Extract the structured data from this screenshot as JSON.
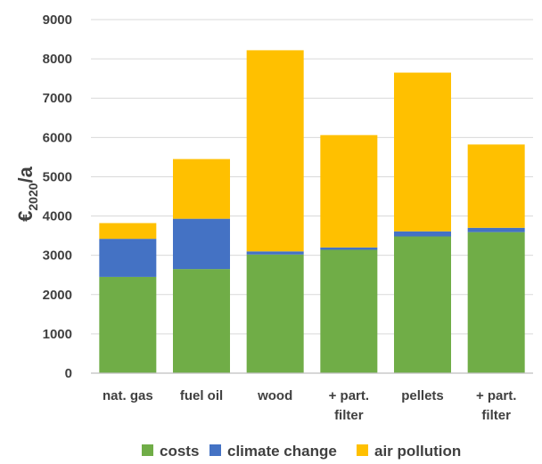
{
  "chart_data": {
    "type": "bar",
    "stacked": true,
    "categories": [
      [
        "nat. gas"
      ],
      [
        "fuel oil"
      ],
      [
        "wood"
      ],
      [
        "+ part.",
        "filter"
      ],
      [
        "pellets"
      ],
      [
        "+ part.",
        "filter"
      ]
    ],
    "series": [
      {
        "name": "costs",
        "color": "#70ad47",
        "values": [
          2450,
          2650,
          3020,
          3140,
          3480,
          3590
        ]
      },
      {
        "name": "climate change",
        "color": "#4472c4",
        "values": [
          970,
          1280,
          80,
          60,
          130,
          110
        ]
      },
      {
        "name": "air pollution",
        "color": "#ffc000",
        "values": [
          400,
          1520,
          5120,
          2860,
          4040,
          2120
        ]
      }
    ],
    "ylabel": {
      "base": "€",
      "sub": "2020",
      "rest": "/a"
    },
    "ylim": [
      0,
      9000
    ],
    "yticks": [
      0,
      1000,
      2000,
      3000,
      4000,
      5000,
      6000,
      7000,
      8000,
      9000
    ],
    "grid": true,
    "legend": "bottom"
  }
}
